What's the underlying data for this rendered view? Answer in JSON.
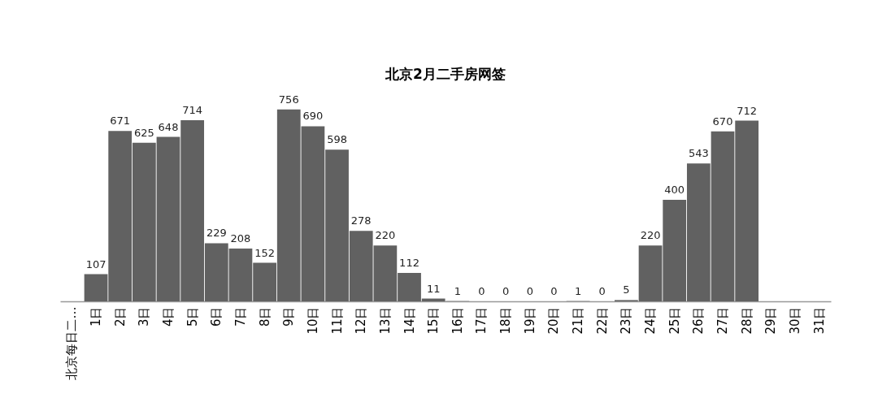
{
  "chart_data": {
    "type": "bar",
    "title": "北京2月二手房网签",
    "categories": [
      "北京每日二…",
      "1日",
      "2日",
      "3日",
      "4日",
      "5日",
      "6日",
      "7日",
      "8日",
      "9日",
      "10日",
      "11日",
      "12日",
      "13日",
      "14日",
      "15日",
      "16日",
      "17日",
      "18日",
      "19日",
      "20日",
      "21日",
      "22日",
      "23日",
      "24日",
      "25日",
      "26日",
      "27日",
      "28日",
      "29日",
      "30日",
      "31日"
    ],
    "values": [
      null,
      107,
      671,
      625,
      648,
      714,
      229,
      208,
      152,
      756,
      690,
      598,
      278,
      220,
      112,
      11,
      1,
      0,
      0,
      0,
      0,
      1,
      0,
      5,
      220,
      400,
      543,
      670,
      712,
      null,
      null,
      null
    ],
    "color": "#616161",
    "data_labels": true
  }
}
